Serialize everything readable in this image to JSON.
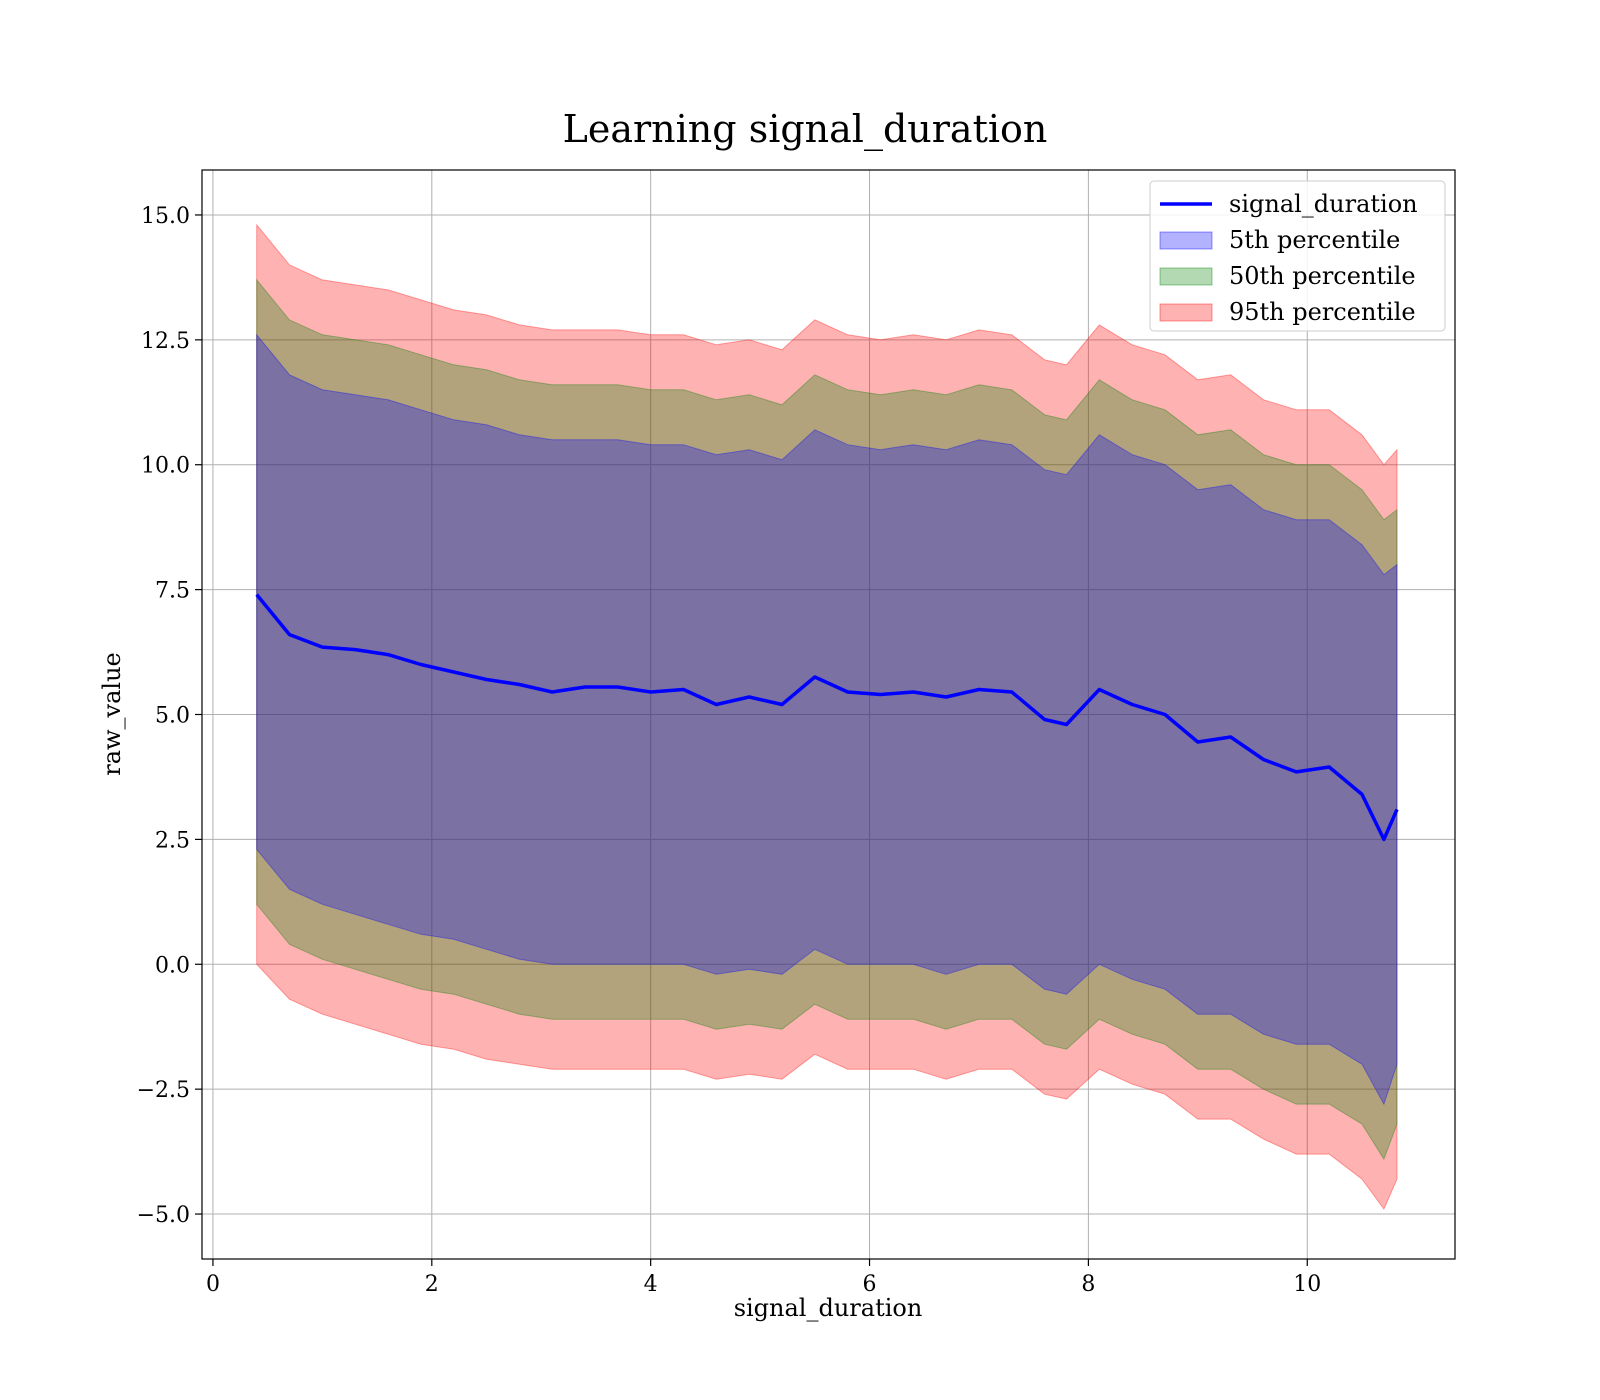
{
  "chart_data": {
    "type": "area",
    "title": "Learning signal_duration",
    "xlabel": "signal_duration",
    "ylabel": "raw_value",
    "xlim": [
      -0.1,
      11.35
    ],
    "ylim": [
      -5.9,
      15.9
    ],
    "xticks": [
      0,
      2,
      4,
      6,
      8,
      10
    ],
    "xtick_labels": [
      "0",
      "2",
      "4",
      "6",
      "8",
      "10"
    ],
    "yticks": [
      -5.0,
      -2.5,
      0.0,
      2.5,
      5.0,
      7.5,
      10.0,
      12.5,
      15.0
    ],
    "ytick_labels": [
      "−5.0",
      "−2.5",
      "0.0",
      "2.5",
      "5.0",
      "7.5",
      "10.0",
      "12.5",
      "15.0"
    ],
    "grid": true,
    "legend_position": "top-right",
    "x": [
      0.4,
      0.7,
      1.0,
      1.3,
      1.6,
      1.9,
      2.2,
      2.5,
      2.8,
      3.1,
      3.4,
      3.7,
      4.0,
      4.3,
      4.6,
      4.9,
      5.2,
      5.5,
      5.8,
      6.1,
      6.4,
      6.7,
      7.0,
      7.3,
      7.6,
      7.8,
      8.1,
      8.4,
      8.7,
      9.0,
      9.3,
      9.6,
      9.9,
      10.2,
      10.5,
      10.7,
      10.82
    ],
    "series": [
      {
        "name": "signal_duration",
        "kind": "line",
        "color": "#0000ff",
        "values": [
          7.4,
          6.6,
          6.35,
          6.3,
          6.2,
          6.0,
          5.85,
          5.7,
          5.6,
          5.45,
          5.55,
          5.55,
          5.45,
          5.5,
          5.2,
          5.35,
          5.2,
          5.75,
          5.45,
          5.4,
          5.45,
          5.35,
          5.5,
          5.45,
          4.9,
          4.8,
          5.5,
          5.2,
          5.0,
          4.45,
          4.55,
          4.1,
          3.85,
          3.95,
          3.4,
          2.5,
          3.1
        ]
      },
      {
        "name": "5th percentile",
        "kind": "band",
        "color": "#0000ff",
        "opacity": 0.3,
        "lower": [
          2.3,
          1.5,
          1.2,
          1.0,
          0.8,
          0.6,
          0.5,
          0.3,
          0.1,
          0.0,
          0.0,
          0.0,
          0.0,
          0.0,
          -0.2,
          -0.1,
          -0.2,
          0.3,
          0.0,
          0.0,
          0.0,
          -0.2,
          0.0,
          0.0,
          -0.5,
          -0.6,
          0.0,
          -0.3,
          -0.5,
          -1.0,
          -1.0,
          -1.4,
          -1.6,
          -1.6,
          -2.0,
          -2.8,
          -2.0
        ],
        "upper": [
          12.6,
          11.8,
          11.5,
          11.4,
          11.3,
          11.1,
          10.9,
          10.8,
          10.6,
          10.5,
          10.5,
          10.5,
          10.4,
          10.4,
          10.2,
          10.3,
          10.1,
          10.7,
          10.4,
          10.3,
          10.4,
          10.3,
          10.5,
          10.4,
          9.9,
          9.8,
          10.6,
          10.2,
          10.0,
          9.5,
          9.6,
          9.1,
          8.9,
          8.9,
          8.4,
          7.8,
          8.0
        ]
      },
      {
        "name": "50th percentile",
        "kind": "band",
        "color": "#008000",
        "opacity": 0.3,
        "lower": [
          1.2,
          0.4,
          0.1,
          -0.1,
          -0.3,
          -0.5,
          -0.6,
          -0.8,
          -1.0,
          -1.1,
          -1.1,
          -1.1,
          -1.1,
          -1.1,
          -1.3,
          -1.2,
          -1.3,
          -0.8,
          -1.1,
          -1.1,
          -1.1,
          -1.3,
          -1.1,
          -1.1,
          -1.6,
          -1.7,
          -1.1,
          -1.4,
          -1.6,
          -2.1,
          -2.1,
          -2.5,
          -2.8,
          -2.8,
          -3.2,
          -3.9,
          -3.2
        ],
        "upper": [
          13.7,
          12.9,
          12.6,
          12.5,
          12.4,
          12.2,
          12.0,
          11.9,
          11.7,
          11.6,
          11.6,
          11.6,
          11.5,
          11.5,
          11.3,
          11.4,
          11.2,
          11.8,
          11.5,
          11.4,
          11.5,
          11.4,
          11.6,
          11.5,
          11.0,
          10.9,
          11.7,
          11.3,
          11.1,
          10.6,
          10.7,
          10.2,
          10.0,
          10.0,
          9.5,
          8.9,
          9.1
        ]
      },
      {
        "name": "95th percentile",
        "kind": "band",
        "color": "#ff0000",
        "opacity": 0.3,
        "lower": [
          0.0,
          -0.7,
          -1.0,
          -1.2,
          -1.4,
          -1.6,
          -1.7,
          -1.9,
          -2.0,
          -2.1,
          -2.1,
          -2.1,
          -2.1,
          -2.1,
          -2.3,
          -2.2,
          -2.3,
          -1.8,
          -2.1,
          -2.1,
          -2.1,
          -2.3,
          -2.1,
          -2.1,
          -2.6,
          -2.7,
          -2.1,
          -2.4,
          -2.6,
          -3.1,
          -3.1,
          -3.5,
          -3.8,
          -3.8,
          -4.3,
          -4.9,
          -4.3
        ],
        "upper": [
          14.8,
          14.0,
          13.7,
          13.6,
          13.5,
          13.3,
          13.1,
          13.0,
          12.8,
          12.7,
          12.7,
          12.7,
          12.6,
          12.6,
          12.4,
          12.5,
          12.3,
          12.9,
          12.6,
          12.5,
          12.6,
          12.5,
          12.7,
          12.6,
          12.1,
          12.0,
          12.8,
          12.4,
          12.2,
          11.7,
          11.8,
          11.3,
          11.1,
          11.1,
          10.6,
          10.0,
          10.3
        ]
      }
    ]
  }
}
